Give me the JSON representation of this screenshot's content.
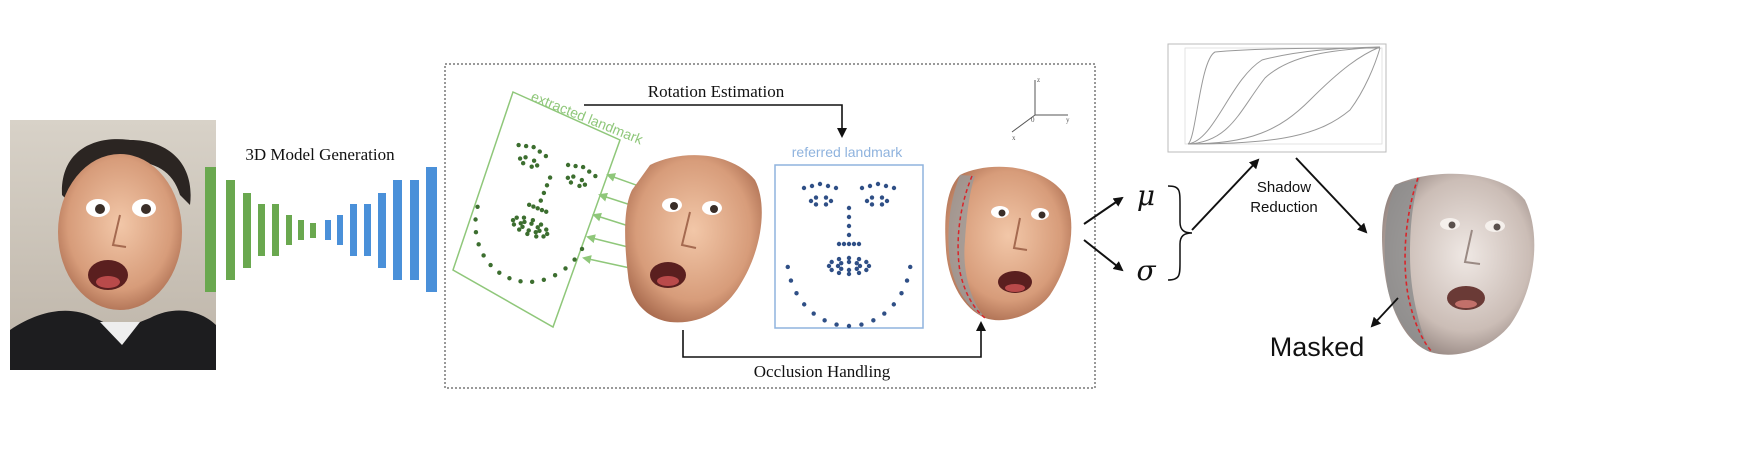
{
  "labels": {
    "model_generation": "3D Model Generation",
    "rotation_estimation": "Rotation Estimation",
    "extracted_landmark": "extracted landmark",
    "referred_landmark": "referred landmark",
    "occlusion_handling": "Occlusion Handling",
    "mu": "μ",
    "sigma": "σ",
    "shadow_reduction_line1": "Shadow",
    "shadow_reduction_line2": "Reduction",
    "masked": "Masked"
  },
  "colors": {
    "encoder_green": "#6aa84f",
    "decoder_blue": "#4a90d9",
    "extracted_landmark": "#8fc77a",
    "referred_landmark": "#8fb3de",
    "mask_line": "#d9252a",
    "landmark_dot_green": "#3c6e2f",
    "landmark_dot_blue": "#2f4f86"
  },
  "icons": {
    "input_photo": "face-photo-icon",
    "face_model": "3d-face-model-icon",
    "occluded_face": "occlusion-mask-face-icon",
    "masked_face": "shadow-reduced-face-icon",
    "axes": "3d-axes-icon",
    "curves": "sigmoid-curves-chart-icon"
  }
}
